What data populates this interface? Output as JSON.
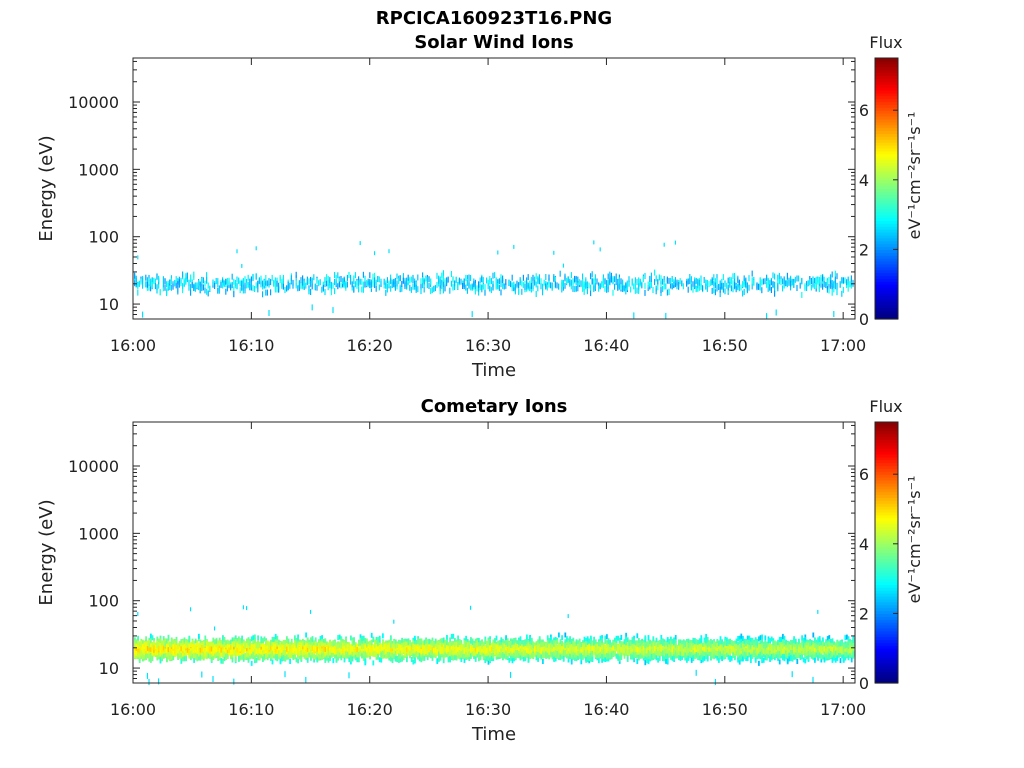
{
  "figure": {
    "title": "RPCICA160923T16.PNG"
  },
  "chart_data": [
    {
      "type": "heatmap",
      "title": "Solar Wind Ions",
      "xlabel": "Time",
      "ylabel": "Energy (eV)",
      "x_ticks": [
        "16:00",
        "16:10",
        "16:20",
        "16:30",
        "16:40",
        "16:50",
        "17:00"
      ],
      "x_range": [
        "16:00",
        "17:01"
      ],
      "y_scale": "log",
      "y_ticks": [
        10,
        100,
        1000,
        10000
      ],
      "y_tick_labels": [
        "10",
        "100",
        "1000",
        "10000"
      ],
      "ylim": [
        6,
        45000
      ],
      "colorbar": {
        "title": "Flux",
        "label": "eV⁻¹cm⁻²sr⁻¹s⁻¹",
        "ticks": [
          0,
          2,
          4,
          6
        ],
        "range": [
          0,
          7.5
        ],
        "colormap": "jet"
      },
      "band": {
        "energy_center_ev": 20,
        "energy_range_ev": [
          10,
          35
        ],
        "flux_range": [
          2.0,
          3.0
        ],
        "density": "sparse",
        "description": "sparse cyan speckles"
      }
    },
    {
      "type": "heatmap",
      "title": "Cometary Ions",
      "xlabel": "Time",
      "ylabel": "Energy (eV)",
      "x_ticks": [
        "16:00",
        "16:10",
        "16:20",
        "16:30",
        "16:40",
        "16:50",
        "17:00"
      ],
      "x_range": [
        "16:00",
        "17:01"
      ],
      "y_scale": "log",
      "y_ticks": [
        10,
        100,
        1000,
        10000
      ],
      "y_tick_labels": [
        "10",
        "100",
        "1000",
        "10000"
      ],
      "ylim": [
        6,
        45000
      ],
      "colorbar": {
        "title": "Flux",
        "label": "eV⁻¹cm⁻²sr⁻¹s⁻¹",
        "ticks": [
          0,
          2,
          4,
          6
        ],
        "range": [
          0,
          7.5
        ],
        "colormap": "jet"
      },
      "band": {
        "energy_center_ev": 19,
        "energy_range_ev": [
          10,
          32
        ],
        "flux_core_start": 5.0,
        "flux_core_end": 4.3,
        "density": "dense",
        "description": "dense yellow core band with green/cyan edges"
      }
    }
  ]
}
